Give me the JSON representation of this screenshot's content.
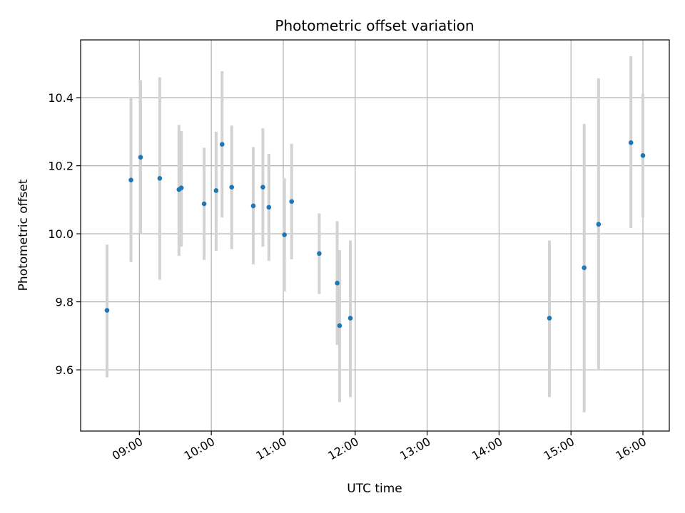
{
  "chart_data": {
    "type": "scatter",
    "title": "Photometric offset variation",
    "xlabel": "UTC time",
    "ylabel": "Photometric offset",
    "x_unit": "UTC time (HH:MM)",
    "xlim": [
      "08:11",
      "16:22"
    ],
    "ylim": [
      9.42,
      10.57
    ],
    "xticks": [
      "09:00",
      "10:00",
      "11:00",
      "12:00",
      "13:00",
      "14:00",
      "15:00",
      "16:00"
    ],
    "yticks": [
      9.6,
      9.8,
      10.0,
      10.2,
      10.4
    ],
    "grid": true,
    "legend": null,
    "colors": {
      "point": "#1f77b4",
      "errorbar": "#d3d3d3",
      "grid": "#b0b0b0"
    },
    "points": [
      {
        "x": "08:33",
        "y": 9.775,
        "yerr": [
          9.578,
          9.968
        ]
      },
      {
        "x": "08:53",
        "y": 10.158,
        "yerr": [
          9.917,
          10.398
        ]
      },
      {
        "x": "09:01",
        "y": 10.225,
        "yerr": [
          10.0,
          10.452
        ]
      },
      {
        "x": "09:17",
        "y": 10.163,
        "yerr": [
          9.865,
          10.46
        ]
      },
      {
        "x": "09:33",
        "y": 10.13,
        "yerr": [
          9.935,
          10.32
        ]
      },
      {
        "x": "09:35",
        "y": 10.135,
        "yerr": [
          9.962,
          10.302
        ]
      },
      {
        "x": "09:54",
        "y": 10.088,
        "yerr": [
          9.923,
          10.253
        ]
      },
      {
        "x": "10:04",
        "y": 10.127,
        "yerr": [
          9.95,
          10.3
        ]
      },
      {
        "x": "10:09",
        "y": 10.263,
        "yerr": [
          10.048,
          10.478
        ]
      },
      {
        "x": "10:17",
        "y": 10.137,
        "yerr": [
          9.955,
          10.318
        ]
      },
      {
        "x": "10:35",
        "y": 10.082,
        "yerr": [
          9.91,
          10.255
        ]
      },
      {
        "x": "10:43",
        "y": 10.137,
        "yerr": [
          9.962,
          10.31
        ]
      },
      {
        "x": "10:48",
        "y": 10.078,
        "yerr": [
          9.92,
          10.235
        ]
      },
      {
        "x": "11:01",
        "y": 9.997,
        "yerr": [
          9.83,
          10.163
        ]
      },
      {
        "x": "11:07",
        "y": 10.095,
        "yerr": [
          9.925,
          10.265
        ]
      },
      {
        "x": "11:30",
        "y": 9.942,
        "yerr": [
          9.823,
          10.06
        ]
      },
      {
        "x": "11:45",
        "y": 9.855,
        "yerr": [
          9.673,
          10.037
        ]
      },
      {
        "x": "11:47",
        "y": 9.73,
        "yerr": [
          9.505,
          9.952
        ]
      },
      {
        "x": "11:56",
        "y": 9.752,
        "yerr": [
          9.52,
          9.98
        ]
      },
      {
        "x": "14:42",
        "y": 9.752,
        "yerr": [
          9.52,
          9.98
        ]
      },
      {
        "x": "15:11",
        "y": 9.9,
        "yerr": [
          9.475,
          10.323
        ]
      },
      {
        "x": "15:23",
        "y": 10.028,
        "yerr": [
          9.6,
          10.457
        ]
      },
      {
        "x": "15:50",
        "y": 10.268,
        "yerr": [
          10.017,
          10.522
        ]
      },
      {
        "x": "16:00",
        "y": 10.23,
        "yerr": [
          10.048,
          10.412
        ]
      }
    ]
  }
}
